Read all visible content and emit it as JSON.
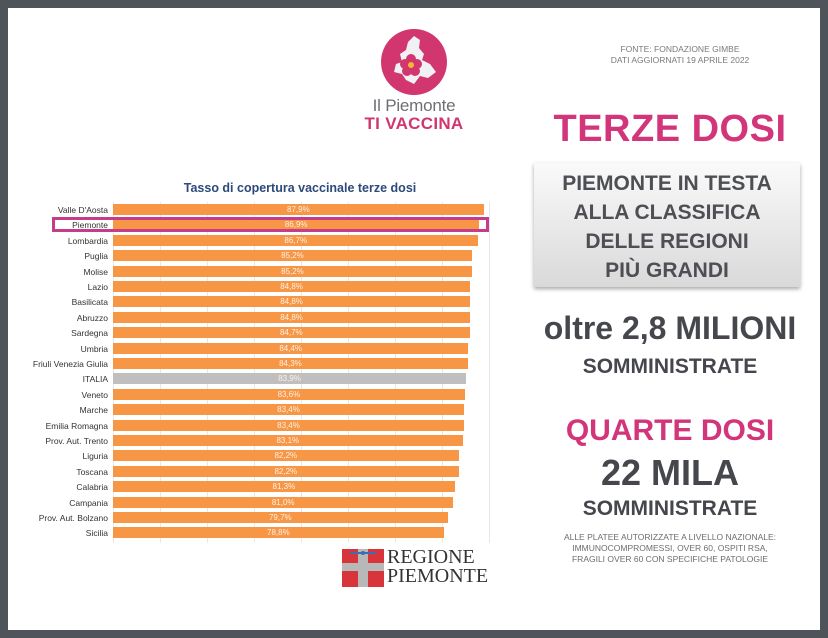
{
  "logo": {
    "line1": "Il Piemonte",
    "line2": "TI VACCINA",
    "circle_color": "#d1366f"
  },
  "source": {
    "line1": "FONTE: FONDAZIONE GIMBE",
    "line2": "DATI AGGIORNATI 19 APRILE 2022"
  },
  "chart_data": {
    "type": "bar",
    "orientation": "horizontal",
    "title": "Tasso di copertura vaccinale terze dosi",
    "xlabel": "",
    "ylabel": "",
    "categories": [
      "Valle D'Aosta",
      "Piemonte",
      "Lombardia",
      "Puglia",
      "Molise",
      "Lazio",
      "Basilicata",
      "Abruzzo",
      "Sardegna",
      "Umbria",
      "Friuli Venezia Giulia",
      "ITALIA",
      "Veneto",
      "Marche",
      "Emilia Romagna",
      "Prov. Aut. Trento",
      "Liguria",
      "Toscana",
      "Calabria",
      "Campania",
      "Prov. Aut. Bolzano",
      "Sicilia"
    ],
    "values": [
      87.9,
      86.9,
      86.7,
      85.2,
      85.2,
      84.8,
      84.8,
      84.8,
      84.7,
      84.4,
      84.3,
      83.9,
      83.6,
      83.4,
      83.4,
      83.1,
      82.2,
      82.2,
      81.3,
      81.0,
      79.7,
      78.8
    ],
    "labels": [
      "87,9%",
      "86,9%",
      "86,7%",
      "85,2%",
      "85,2%",
      "84,8%",
      "84,8%",
      "84,8%",
      "84,7%",
      "84,4%",
      "84,3%",
      "83,9%",
      "83,6%",
      "83,4%",
      "83,4%",
      "83,1%",
      "82,2%",
      "82,2%",
      "81,3%",
      "81,0%",
      "79,7%",
      "78,8%"
    ],
    "highlighted": "Piemonte",
    "national_average": "ITALIA",
    "bar_color": "#f79645",
    "national_color": "#bfbfbf",
    "highlight_color": "#c43c8a",
    "grid": true,
    "legend": false
  },
  "right_panel": {
    "headline1": "TERZE DOSI",
    "box_lines": [
      "PIEMONTE IN TESTA",
      "ALLA CLASSIFICA",
      "DELLE REGIONI",
      "PIÙ GRANDI"
    ],
    "big_number": "oltre 2,8 MILIONI",
    "sub1": "SOMMINISTRATE",
    "headline2": "QUARTE DOSI",
    "big_number2": "22 MILA",
    "sub2": "SOMMINISTRATE",
    "footnote": [
      "ALLE PLATEE AUTORIZZATE A LIVELLO NAZIONALE:",
      "IMMUNOCOMPROMESSI, OVER 60, OSPITI RSA,",
      "FRAGILI OVER 60 CON SPECIFICHE PATOLOGIE"
    ],
    "accent_color": "#d2357a"
  },
  "regione_logo": {
    "line1": "REGIONE",
    "line2": "PIEMONTE"
  }
}
